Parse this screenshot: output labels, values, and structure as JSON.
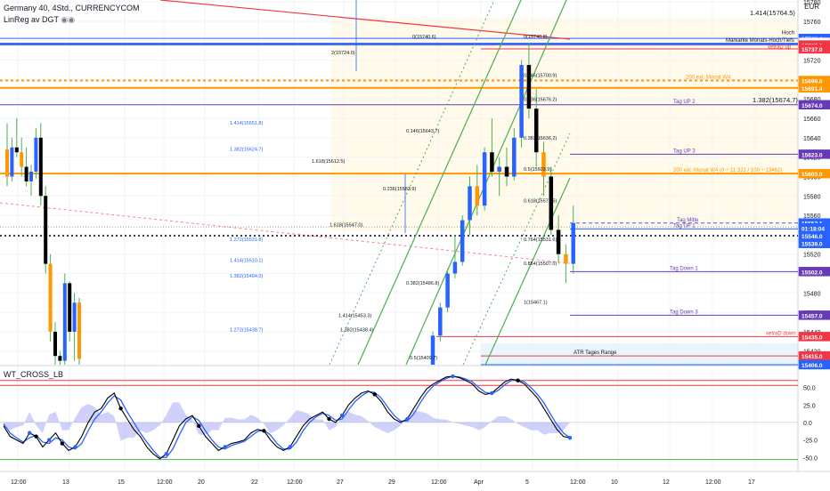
{
  "header": {
    "symbol_line": "Germany 40, 4Std., CURRENCYCOM",
    "indicator_line": "LinReg av DGT",
    "currency": "EUR",
    "lower_pane_title": "WT_CROSS_LB"
  },
  "colors": {
    "up": "#2962ff",
    "down": "#000000",
    "wick": "#4caf50",
    "wt1": "#000000",
    "wt2": "#2962ff",
    "hist": "#9598f5",
    "red_level": "#f23645",
    "green_level": "#4caf50",
    "orange": "#ff9800",
    "purple": "#673ab7",
    "price_tag": "#2962ff"
  },
  "chart_data": [
    {
      "type": "candlestick",
      "symbol": "Germany 40",
      "timeframe": "4Std.",
      "y_axis": {
        "min": 15406,
        "max": 15782,
        "ticks": [
          15420,
          15440,
          15460,
          15480,
          15500,
          15520,
          15540,
          15560,
          15580,
          15600,
          15620,
          15640,
          15660,
          15680,
          15700,
          15720,
          15740,
          15760,
          15780
        ]
      },
      "x_ticks": [
        "12:00",
        "13",
        "15",
        "12:00",
        "20",
        "22",
        "12:00",
        "27",
        "29",
        "12:00",
        "Apr",
        "5",
        "12:00",
        "10",
        "12",
        "12:00",
        "17"
      ],
      "candles": [
        {
          "o": 15628,
          "h": 15655,
          "l": 15590,
          "c": 15600
        },
        {
          "o": 15600,
          "h": 15640,
          "l": 15595,
          "c": 15630
        },
        {
          "o": 15630,
          "h": 15660,
          "l": 15620,
          "c": 15625
        },
        {
          "o": 15625,
          "h": 15640,
          "l": 15600,
          "c": 15610
        },
        {
          "o": 15610,
          "h": 15630,
          "l": 15590,
          "c": 15595
        },
        {
          "o": 15595,
          "h": 15612,
          "l": 15580,
          "c": 15605
        },
        {
          "o": 15605,
          "h": 15650,
          "l": 15598,
          "c": 15640
        },
        {
          "o": 15640,
          "h": 15655,
          "l": 15570,
          "c": 15580
        },
        {
          "o": 15580,
          "h": 15590,
          "l": 15500,
          "c": 15510
        },
        {
          "o": 15510,
          "h": 15520,
          "l": 15430,
          "c": 15440
        },
        {
          "o": 15440,
          "h": 15450,
          "l": 15406,
          "c": 15415
        },
        {
          "o": 15415,
          "h": 15420,
          "l": 15406,
          "c": 15410
        },
        {
          "o": 15410,
          "h": 15500,
          "l": 15406,
          "c": 15490
        },
        {
          "o": 15490,
          "h": 15492,
          "l": 15430,
          "c": 15440
        },
        {
          "o": 15440,
          "h": 15480,
          "l": 15410,
          "c": 15470
        },
        {
          "o": 15470,
          "h": 15475,
          "l": 15406,
          "c": 15412
        }
      ],
      "candles_right": [
        {
          "o": 15406,
          "h": 15440,
          "l": 15406,
          "c": 15436
        },
        {
          "o": 15436,
          "h": 15470,
          "l": 15430,
          "c": 15465
        },
        {
          "o": 15465,
          "h": 15505,
          "l": 15460,
          "c": 15500
        },
        {
          "o": 15500,
          "h": 15540,
          "l": 15495,
          "c": 15512
        },
        {
          "o": 15512,
          "h": 15560,
          "l": 15508,
          "c": 15555
        },
        {
          "o": 15555,
          "h": 15600,
          "l": 15540,
          "c": 15590
        },
        {
          "o": 15590,
          "h": 15612,
          "l": 15560,
          "c": 15570
        },
        {
          "o": 15570,
          "h": 15630,
          "l": 15565,
          "c": 15625
        },
        {
          "o": 15625,
          "h": 15660,
          "l": 15600,
          "c": 15605
        },
        {
          "o": 15605,
          "h": 15620,
          "l": 15580,
          "c": 15610
        },
        {
          "o": 15610,
          "h": 15630,
          "l": 15590,
          "c": 15600
        },
        {
          "o": 15600,
          "h": 15650,
          "l": 15596,
          "c": 15640
        },
        {
          "o": 15640,
          "h": 15720,
          "l": 15630,
          "c": 15715
        },
        {
          "o": 15715,
          "h": 15738,
          "l": 15660,
          "c": 15670
        },
        {
          "o": 15670,
          "h": 15690,
          "l": 15610,
          "c": 15625
        },
        {
          "o": 15625,
          "h": 15636,
          "l": 15580,
          "c": 15600
        },
        {
          "o": 15600,
          "h": 15610,
          "l": 15540,
          "c": 15545
        },
        {
          "o": 15545,
          "h": 15560,
          "l": 15510,
          "c": 15520
        },
        {
          "o": 15520,
          "h": 15530,
          "l": 15490,
          "c": 15510
        },
        {
          "o": 15510,
          "h": 15570,
          "l": 15500,
          "c": 15552
        }
      ],
      "price_labels": [
        {
          "value": "15742.4",
          "price": 15742.4,
          "color": "#2962ff"
        },
        {
          "value": "15740.8",
          "price": 15738.5,
          "color": "#ffffff",
          "text_color": "#131722",
          "border": "#b2b5be"
        },
        {
          "value": "15737.0",
          "price": 15735.6,
          "color": "#f23645"
        },
        {
          "value": "15737.0",
          "price": 15731.6,
          "color": "#f23645"
        },
        {
          "value": "15699.0",
          "price": 15699,
          "color": "#ff9800"
        },
        {
          "value": "15691.4",
          "price": 15691.4,
          "color": "#ff9800"
        },
        {
          "value": "15674.0",
          "price": 15674,
          "color": "#673ab7"
        },
        {
          "value": "15623.0",
          "price": 15623,
          "color": "#673ab7"
        },
        {
          "value": "15603.0",
          "price": 15603,
          "color": "#ff9800"
        },
        {
          "value": "15552.1",
          "price": 15552.1,
          "color": "#2962ff"
        },
        {
          "value": "01:18:04",
          "price": 15547,
          "color": "#2962ff"
        },
        {
          "value": "15546.0",
          "price": 15539,
          "color": "#2962ff"
        },
        {
          "value": "15539.0",
          "price": 15531,
          "color": "#2962ff"
        },
        {
          "value": "15502.0",
          "price": 15502,
          "color": "#673ab7"
        },
        {
          "value": "15457.0",
          "price": 15457,
          "color": "#673ab7"
        },
        {
          "value": "15435.0",
          "price": 15435,
          "color": "#f23645"
        },
        {
          "value": "15415.0",
          "price": 15415,
          "color": "#f23645"
        },
        {
          "value": "15406.0",
          "price": 15406,
          "color": "#2962ff"
        }
      ],
      "annotations": [
        {
          "text": "1.414(15764.5)",
          "price": 15764.5,
          "kind": "fib"
        },
        {
          "text": "Hoch",
          "price": 15745
        },
        {
          "text": "Markante Monats-Hoch/Tiefs",
          "price": 15737
        },
        {
          "text": "xetraD up",
          "price": 15730
        },
        {
          "text": "200 ext. Monat W4",
          "price": 15699
        },
        {
          "text": "Tag UP 2",
          "price": 15674
        },
        {
          "text": "1.382(15674.7)",
          "price": 15674.7
        },
        {
          "text": "Tag UP 3",
          "price": 15623
        },
        {
          "text": "200 ext. Monat W4 (0 ÷ 11.321 / 100 ÷ 13462)",
          "price": 15603
        },
        {
          "text": "Tag Mitte",
          "price": 15552
        },
        {
          "text": "Tag UP 1",
          "price": 15546
        },
        {
          "text": "Tag Down 1",
          "price": 15502
        },
        {
          "text": "Tag Down 3",
          "price": 15457
        },
        {
          "text": "xetraD down",
          "price": 15435
        },
        {
          "text": "ATR Tages Range",
          "price": 15415
        }
      ],
      "fib_labels_left": [
        {
          "text": "1.414(15651.8)",
          "price": 15651.8
        },
        {
          "text": "1.382(15624.7)",
          "price": 15624.7
        },
        {
          "text": "1.272(15531.8)",
          "price": 15531.8
        },
        {
          "text": "1.414(15510.1)",
          "price": 15510.1
        },
        {
          "text": "1.382(15494.0)",
          "price": 15494.0
        },
        {
          "text": "1.272(15438.7)",
          "price": 15438.7
        }
      ],
      "fib_labels_mid": [
        {
          "text": "1.618(15612.5)",
          "price": 15612.5
        },
        {
          "text": "0.146(15643.7)",
          "price": 15643.7
        },
        {
          "text": "0.236(15583.9)",
          "price": 15583.9
        },
        {
          "text": "1.618(15547.0)",
          "price": 15547
        },
        {
          "text": "0.382(15486.8)",
          "price": 15486.8
        },
        {
          "text": "1.414(15453.3)",
          "price": 15453.3
        },
        {
          "text": "1.382(15438.4)",
          "price": 15438.4
        },
        {
          "text": "0.5(15409.7)",
          "price": 15409.7
        },
        {
          "text": "0(15740.6)",
          "price": 15740.6
        },
        {
          "text": "2(15724.0)",
          "price": 15724
        }
      ],
      "fib_labels_right": [
        {
          "text": "0(15740.8)",
          "price": 15740.8
        },
        {
          "text": "0.146(15700.9)",
          "price": 15700.9
        },
        {
          "text": "0.236(15676.2)",
          "price": 15676.2
        },
        {
          "text": "0.382(15636.2)",
          "price": 15636.2
        },
        {
          "text": "0.5(15603.9)",
          "price": 15603.9
        },
        {
          "text": "0.618(15571.5)",
          "price": 15571.5
        },
        {
          "text": "0.764(15531.6)",
          "price": 15531.6
        },
        {
          "text": "0.854(15507.0)",
          "price": 15507
        },
        {
          "text": "1(15467.1)",
          "price": 15467.1
        }
      ]
    },
    {
      "type": "line",
      "name": "WT_CROSS_LB",
      "y_axis": {
        "min": -70,
        "max": 80,
        "ticks": [
          50,
          25,
          0,
          -25,
          -50
        ]
      },
      "levels": {
        "upper_red": 60,
        "upper_red2": 53,
        "lower_green": -53
      },
      "wt1": [
        -5,
        -20,
        -25,
        -30,
        -15,
        -20,
        -35,
        -25,
        -15,
        -30,
        -40,
        -35,
        -20,
        0,
        15,
        20,
        35,
        42,
        20,
        5,
        -10,
        -20,
        -35,
        -45,
        -52,
        -45,
        -25,
        -5,
        5,
        10,
        -5,
        -20,
        -30,
        -40,
        -35,
        -30,
        -28,
        -25,
        -15,
        -10,
        -12,
        -25,
        -35,
        -40,
        -35,
        -20,
        -5,
        5,
        10,
        15,
        5,
        0,
        10,
        25,
        35,
        42,
        45,
        40,
        30,
        15,
        5,
        0,
        5,
        20,
        35,
        48,
        55,
        60,
        65,
        66,
        64,
        60,
        55,
        45,
        40,
        42,
        50,
        58,
        62,
        60,
        55,
        45,
        35,
        20,
        5,
        -10,
        -20,
        -22
      ],
      "wt2": [
        -2,
        -15,
        -22,
        -28,
        -22,
        -18,
        -28,
        -30,
        -22,
        -25,
        -35,
        -38,
        -30,
        -12,
        5,
        15,
        28,
        38,
        32,
        15,
        0,
        -15,
        -28,
        -40,
        -50,
        -50,
        -38,
        -18,
        0,
        8,
        3,
        -12,
        -25,
        -35,
        -38,
        -33,
        -30,
        -27,
        -20,
        -13,
        -11,
        -18,
        -30,
        -38,
        -38,
        -28,
        -12,
        0,
        8,
        13,
        10,
        3,
        5,
        18,
        30,
        38,
        44,
        43,
        35,
        22,
        10,
        2,
        2,
        12,
        28,
        42,
        52,
        58,
        63,
        66,
        65,
        62,
        58,
        50,
        43,
        41,
        46,
        54,
        60,
        61,
        58,
        50,
        40,
        28,
        12,
        -3,
        -15,
        -22
      ]
    }
  ]
}
